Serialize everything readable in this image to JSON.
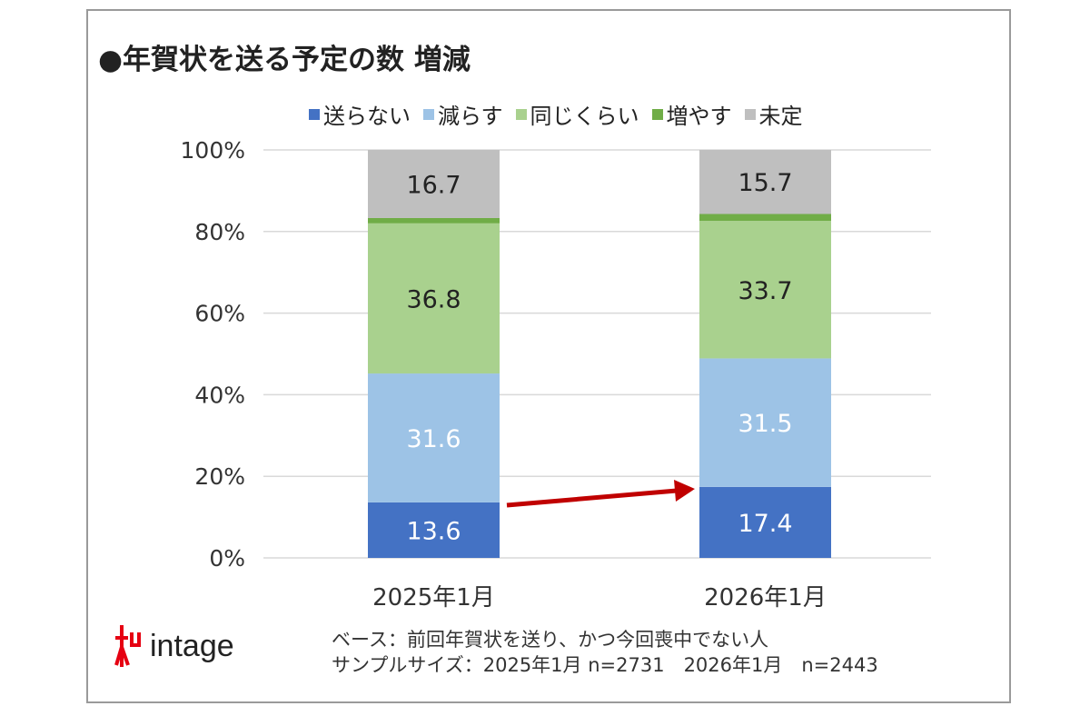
{
  "title": "●年賀状を送る予定の数 増減",
  "chart_data": {
    "type": "bar",
    "stacked": true,
    "title": "●年賀状を送る予定の数 増減",
    "categories": [
      "2025年1月",
      "2026年1月"
    ],
    "ylim": [
      0,
      100
    ],
    "yticks": [
      "0%",
      "20%",
      "40%",
      "60%",
      "80%",
      "100%"
    ],
    "grid": true,
    "legend": "top",
    "series": [
      {
        "name": "送らない",
        "color": "#4472c4",
        "values": [
          13.6,
          17.4
        ],
        "label_color": "#ffffff",
        "show_labels": true
      },
      {
        "name": "減らす",
        "color": "#9dc3e6",
        "values": [
          31.6,
          31.5
        ],
        "label_color": "#ffffff",
        "show_labels": true
      },
      {
        "name": "同じくらい",
        "color": "#a9d18e",
        "values": [
          36.8,
          33.7
        ],
        "label_color": "#222222",
        "show_labels": true
      },
      {
        "name": "増やす",
        "color": "#70ad47",
        "values": [
          1.3,
          1.7
        ],
        "show_labels": false
      },
      {
        "name": "未定",
        "color": "#bfbfbf",
        "values": [
          16.7,
          15.7
        ],
        "label_color": "#222222",
        "show_labels": true
      }
    ],
    "annotation": "arrow from 送らない 2025年1月 to 2026年1月",
    "arrow_color": "#c00000"
  },
  "logo": {
    "text": "intage",
    "mark_color": "#e60012"
  },
  "notes": [
    "ベース：前回年賀状を送り、かつ今回喪中でない人",
    "サンプルサイズ：2025年1月 n=2731　2026年1月　n=2443"
  ]
}
